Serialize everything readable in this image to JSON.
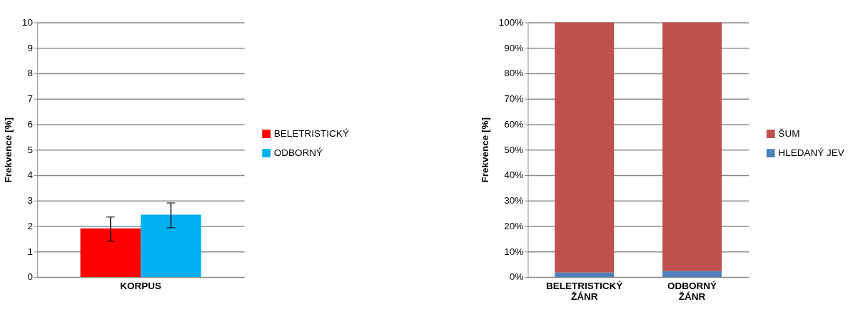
{
  "chart_data": [
    {
      "type": "bar",
      "xlabel": null,
      "ylabel": "Frekvence [%]",
      "categories": [
        "KORPUS"
      ],
      "series": [
        {
          "name": "BELETRISTICKÝ",
          "color": "#ff0000",
          "values": [
            1.91
          ],
          "errors": [
            [
              1.4,
              2.36
            ]
          ]
        },
        {
          "name": "ODBORNÝ",
          "color": "#00b0f0",
          "values": [
            2.45
          ],
          "errors": [
            [
              1.94,
              2.91
            ]
          ]
        }
      ],
      "ylim": [
        0,
        10
      ],
      "yticks": [
        0,
        1,
        2,
        3,
        4,
        5,
        6,
        7,
        8,
        9,
        10
      ],
      "grid": "y",
      "legend": "right"
    },
    {
      "type": "bar",
      "ylabel": "Frekvence [%]",
      "categories": [
        "BELETRISTICKÝ ŽÁNR",
        "ODBORNÝ ŽÁNR"
      ],
      "stacked": true,
      "series": [
        {
          "name": "HLEDANÝ JEV",
          "color": "#4f81bd",
          "values": [
            1.8,
            2.4
          ]
        },
        {
          "name": "ŠUM",
          "color": "#c0504d",
          "values": [
            98.2,
            97.6
          ]
        }
      ],
      "ylim": [
        0,
        100
      ],
      "yticks": [
        {
          "value": 0,
          "label": "0%"
        },
        {
          "value": 10,
          "label": "10%"
        },
        {
          "value": 20,
          "label": "20%"
        },
        {
          "value": 30,
          "label": "30%"
        },
        {
          "value": 40,
          "label": "40%"
        },
        {
          "value": 50,
          "label": "50%"
        },
        {
          "value": 60,
          "label": "60%"
        },
        {
          "value": 70,
          "label": "70%"
        },
        {
          "value": 80,
          "label": "80%"
        },
        {
          "value": 90,
          "label": "90%"
        },
        {
          "value": 100,
          "label": "100%"
        }
      ],
      "grid": "y",
      "legend": "right"
    }
  ]
}
